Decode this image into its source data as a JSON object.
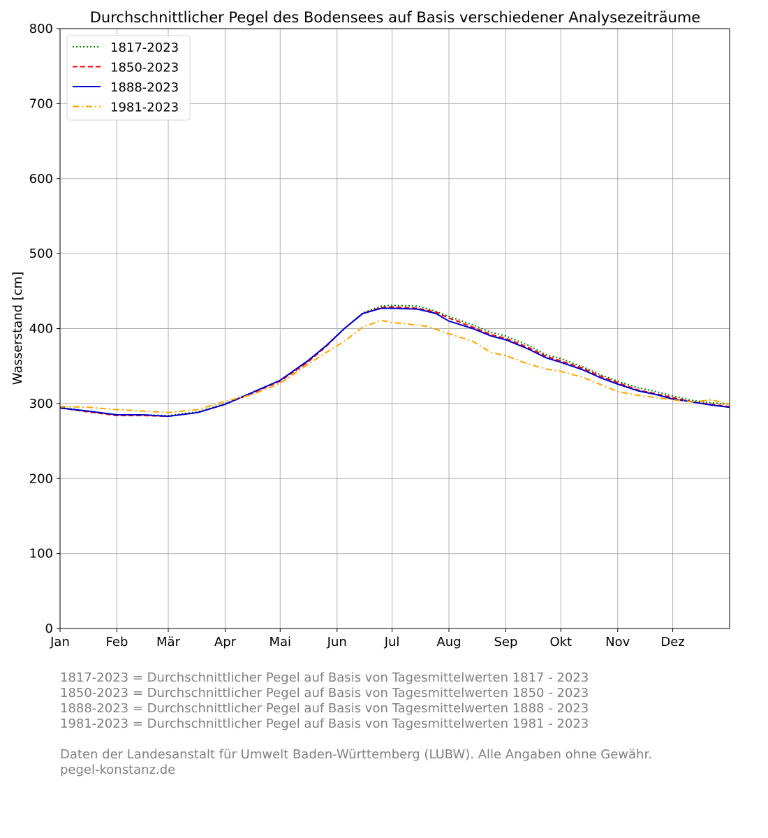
{
  "chart_data": {
    "type": "line",
    "title": "Durchschnittlicher Pegel des Bodensees auf Basis verschiedener Analysezeiträume",
    "xlabel": "",
    "ylabel": "Wasserstand [cm]",
    "ylim": [
      0,
      800
    ],
    "xlim": [
      0,
      365
    ],
    "grid": true,
    "legend_position": "top-left",
    "yticks": [
      0,
      100,
      200,
      300,
      400,
      500,
      600,
      700,
      800
    ],
    "month_ticks": [
      {
        "day": 0,
        "label": "Jan"
      },
      {
        "day": 31,
        "label": "Feb"
      },
      {
        "day": 59,
        "label": "Mär"
      },
      {
        "day": 90,
        "label": "Apr"
      },
      {
        "day": 120,
        "label": "Mai"
      },
      {
        "day": 151,
        "label": "Jun"
      },
      {
        "day": 181,
        "label": "Jul"
      },
      {
        "day": 212,
        "label": "Aug"
      },
      {
        "day": 243,
        "label": "Sep"
      },
      {
        "day": 273,
        "label": "Okt"
      },
      {
        "day": 304,
        "label": "Nov"
      },
      {
        "day": 334,
        "label": "Dez"
      }
    ],
    "series": [
      {
        "name": "1817-2023",
        "color": "#008000",
        "dash": "dotted",
        "points": [
          [
            0,
            295
          ],
          [
            15,
            290
          ],
          [
            31,
            285
          ],
          [
            45,
            285
          ],
          [
            59,
            284
          ],
          [
            75,
            289
          ],
          [
            90,
            300
          ],
          [
            105,
            315
          ],
          [
            120,
            331
          ],
          [
            135,
            356
          ],
          [
            145,
            377
          ],
          [
            155,
            400
          ],
          [
            165,
            421
          ],
          [
            175,
            430
          ],
          [
            181,
            431
          ],
          [
            195,
            430
          ],
          [
            205,
            423
          ],
          [
            212,
            416
          ],
          [
            225,
            405
          ],
          [
            235,
            395
          ],
          [
            243,
            390
          ],
          [
            255,
            378
          ],
          [
            265,
            365
          ],
          [
            273,
            360
          ],
          [
            285,
            349
          ],
          [
            295,
            338
          ],
          [
            304,
            330
          ],
          [
            315,
            321
          ],
          [
            325,
            316
          ],
          [
            334,
            310
          ],
          [
            345,
            304
          ],
          [
            355,
            301
          ],
          [
            365,
            299
          ]
        ]
      },
      {
        "name": "1850-2023",
        "color": "#ff0000",
        "dash": "dashed",
        "points": [
          [
            0,
            294
          ],
          [
            15,
            289
          ],
          [
            31,
            284
          ],
          [
            45,
            284
          ],
          [
            59,
            283
          ],
          [
            75,
            288
          ],
          [
            90,
            299
          ],
          [
            105,
            314
          ],
          [
            120,
            330
          ],
          [
            135,
            355
          ],
          [
            145,
            376
          ],
          [
            155,
            400
          ],
          [
            165,
            420
          ],
          [
            175,
            428
          ],
          [
            181,
            429
          ],
          [
            195,
            427
          ],
          [
            205,
            422
          ],
          [
            212,
            414
          ],
          [
            225,
            402
          ],
          [
            235,
            392
          ],
          [
            243,
            387
          ],
          [
            255,
            375
          ],
          [
            265,
            363
          ],
          [
            273,
            357
          ],
          [
            285,
            347
          ],
          [
            295,
            336
          ],
          [
            304,
            328
          ],
          [
            315,
            318
          ],
          [
            325,
            313
          ],
          [
            334,
            308
          ],
          [
            345,
            302
          ],
          [
            355,
            299
          ],
          [
            365,
            296
          ]
        ]
      },
      {
        "name": "1888-2023",
        "color": "#0000cd",
        "dash": "solid",
        "points": [
          [
            0,
            294
          ],
          [
            15,
            290
          ],
          [
            31,
            285
          ],
          [
            45,
            285
          ],
          [
            59,
            283
          ],
          [
            75,
            288
          ],
          [
            90,
            299
          ],
          [
            105,
            315
          ],
          [
            120,
            331
          ],
          [
            135,
            357
          ],
          [
            145,
            377
          ],
          [
            155,
            400
          ],
          [
            165,
            420
          ],
          [
            175,
            427
          ],
          [
            181,
            427
          ],
          [
            195,
            426
          ],
          [
            205,
            420
          ],
          [
            212,
            410
          ],
          [
            225,
            400
          ],
          [
            235,
            390
          ],
          [
            243,
            385
          ],
          [
            255,
            373
          ],
          [
            265,
            361
          ],
          [
            273,
            355
          ],
          [
            285,
            345
          ],
          [
            295,
            334
          ],
          [
            304,
            326
          ],
          [
            315,
            317
          ],
          [
            325,
            312
          ],
          [
            334,
            306
          ],
          [
            345,
            302
          ],
          [
            355,
            298
          ],
          [
            365,
            295
          ]
        ]
      },
      {
        "name": "1981-2023",
        "color": "#ffa500",
        "dash": "dashdot",
        "points": [
          [
            0,
            296
          ],
          [
            15,
            295
          ],
          [
            31,
            292
          ],
          [
            45,
            290
          ],
          [
            59,
            288
          ],
          [
            75,
            292
          ],
          [
            90,
            303
          ],
          [
            105,
            312
          ],
          [
            120,
            327
          ],
          [
            135,
            352
          ],
          [
            145,
            368
          ],
          [
            155,
            383
          ],
          [
            165,
            402
          ],
          [
            175,
            411
          ],
          [
            181,
            408
          ],
          [
            190,
            406
          ],
          [
            200,
            403
          ],
          [
            212,
            393
          ],
          [
            225,
            383
          ],
          [
            235,
            368
          ],
          [
            243,
            364
          ],
          [
            255,
            353
          ],
          [
            265,
            346
          ],
          [
            273,
            343
          ],
          [
            285,
            335
          ],
          [
            295,
            325
          ],
          [
            304,
            316
          ],
          [
            315,
            311
          ],
          [
            325,
            308
          ],
          [
            334,
            305
          ],
          [
            345,
            302
          ],
          [
            355,
            305
          ],
          [
            365,
            299
          ]
        ]
      }
    ]
  },
  "notes": [
    "1817-2023 = Durchschnittlicher Pegel auf Basis von Tagesmittelwerten 1817 - 2023",
    "1850-2023 = Durchschnittlicher Pegel auf Basis von Tagesmittelwerten 1850 - 2023",
    "1888-2023 = Durchschnittlicher Pegel auf Basis von Tagesmittelwerten 1888 - 2023",
    "1981-2023 = Durchschnittlicher Pegel auf Basis von Tagesmittelwerten 1981 - 2023"
  ],
  "footer": [
    "Daten der Landesanstalt für Umwelt Baden-Württemberg (LUBW). Alle Angaben ohne Gewähr.",
    "pegel-konstanz.de"
  ]
}
